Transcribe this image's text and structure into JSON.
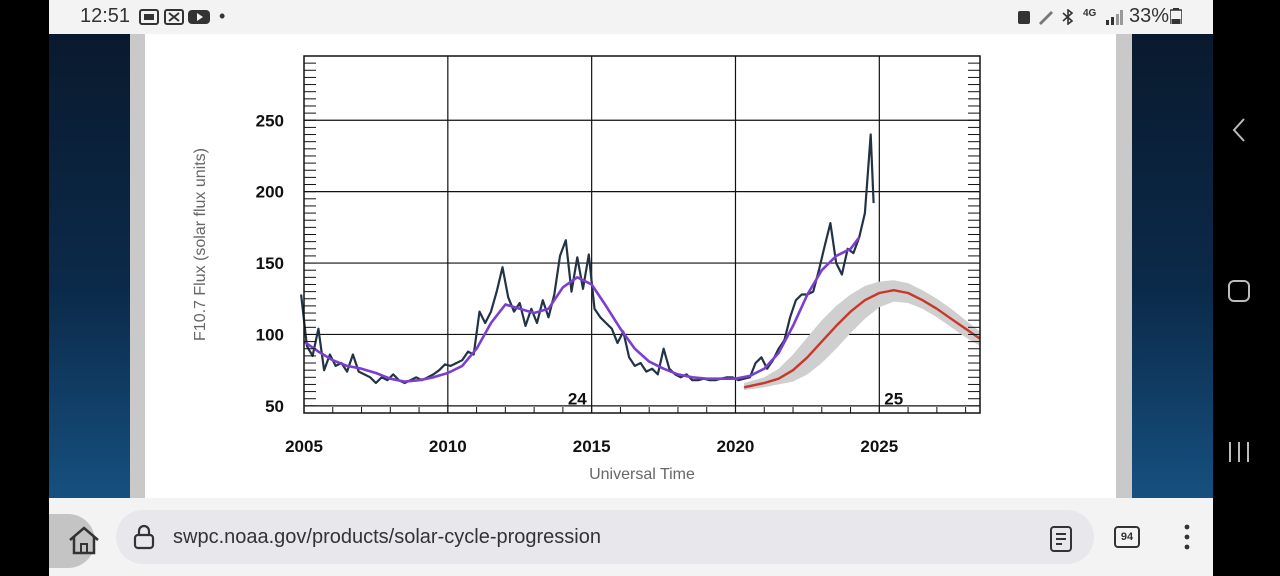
{
  "status_bar": {
    "time": "12:51",
    "dot": "•",
    "battery_text": "33%",
    "network_text": "4G"
  },
  "browser": {
    "url": "swpc.noaa.gov/products/solar-cycle-progression",
    "tab_count": "94"
  },
  "colors": {
    "observed": "#223344",
    "smoothed": "#7a3fd0",
    "predicted": "#c9372c",
    "prediction_band": "#cfcfcf"
  },
  "chart_data": {
    "type": "line",
    "ylabel": "F10.7 Flux (solar flux units)",
    "xlabel": "Universal Time",
    "xlim": [
      2005,
      2028.5
    ],
    "ylim": [
      45,
      295
    ],
    "x_ticks": [
      "2005",
      "2010",
      "2015",
      "2020",
      "2025"
    ],
    "y_ticks": [
      "50",
      "100",
      "150",
      "200",
      "250"
    ],
    "annotations": [
      {
        "text": "24",
        "x": 2014.5,
        "y": 55
      },
      {
        "text": "25",
        "x": 2025.5,
        "y": 55
      }
    ],
    "series": [
      {
        "key": "observed",
        "x": [
          2004.9,
          2005.1,
          2005.3,
          2005.5,
          2005.7,
          2005.9,
          2006.1,
          2006.3,
          2006.5,
          2006.7,
          2006.9,
          2007.1,
          2007.3,
          2007.5,
          2007.7,
          2007.9,
          2008.1,
          2008.3,
          2008.5,
          2008.7,
          2008.9,
          2009.1,
          2009.3,
          2009.5,
          2009.7,
          2009.9,
          2010.1,
          2010.3,
          2010.5,
          2010.7,
          2010.9,
          2011.1,
          2011.3,
          2011.5,
          2011.7,
          2011.9,
          2012.1,
          2012.3,
          2012.5,
          2012.7,
          2012.9,
          2013.1,
          2013.3,
          2013.5,
          2013.7,
          2013.9,
          2014.1,
          2014.3,
          2014.5,
          2014.7,
          2014.9,
          2015.1,
          2015.3,
          2015.5,
          2015.7,
          2015.9,
          2016.1,
          2016.3,
          2016.5,
          2016.7,
          2016.9,
          2017.1,
          2017.3,
          2017.5,
          2017.7,
          2017.9,
          2018.1,
          2018.3,
          2018.5,
          2018.7,
          2018.9,
          2019.1,
          2019.3,
          2019.5,
          2019.7,
          2019.9,
          2020.1,
          2020.3,
          2020.5,
          2020.7,
          2020.9,
          2021.1,
          2021.3,
          2021.5,
          2021.7,
          2021.9,
          2022.1,
          2022.3,
          2022.5,
          2022.7,
          2022.9,
          2023.1,
          2023.3,
          2023.5,
          2023.7,
          2023.9,
          2024.1,
          2024.3,
          2024.5,
          2024.7,
          2024.8
        ],
        "y": [
          128,
          92,
          85,
          104,
          75,
          86,
          78,
          80,
          74,
          86,
          74,
          72,
          70,
          66,
          70,
          68,
          72,
          68,
          66,
          68,
          70,
          68,
          70,
          72,
          75,
          79,
          78,
          80,
          82,
          88,
          86,
          116,
          108,
          116,
          130,
          147,
          126,
          116,
          122,
          106,
          118,
          108,
          124,
          112,
          128,
          155,
          166,
          130,
          154,
          132,
          156,
          118,
          112,
          108,
          104,
          94,
          102,
          84,
          78,
          80,
          74,
          76,
          72,
          90,
          76,
          72,
          70,
          72,
          68,
          68,
          69,
          68,
          68,
          69,
          70,
          70,
          68,
          69,
          70,
          80,
          84,
          76,
          82,
          90,
          96,
          112,
          124,
          128,
          128,
          130,
          145,
          162,
          178,
          150,
          142,
          160,
          157,
          168,
          185,
          240,
          192
        ]
      },
      {
        "key": "smoothed",
        "x": [
          2005.0,
          2005.5,
          2006.0,
          2006.5,
          2007.0,
          2007.5,
          2008.0,
          2008.5,
          2009.0,
          2009.5,
          2010.0,
          2010.5,
          2011.0,
          2011.5,
          2012.0,
          2012.5,
          2013.0,
          2013.5,
          2014.0,
          2014.5,
          2015.0,
          2015.5,
          2016.0,
          2016.5,
          2017.0,
          2017.5,
          2018.0,
          2018.5,
          2019.0,
          2019.5,
          2020.0,
          2020.5,
          2021.0,
          2021.5,
          2022.0,
          2022.5,
          2023.0,
          2023.5,
          2024.0,
          2024.3
        ],
        "y": [
          95,
          88,
          82,
          78,
          76,
          73,
          69,
          67,
          68,
          70,
          73,
          78,
          90,
          108,
          121,
          118,
          115,
          118,
          133,
          140,
          135,
          120,
          104,
          90,
          81,
          76,
          72,
          70,
          69,
          69,
          69,
          71,
          76,
          87,
          106,
          128,
          145,
          155,
          160,
          168
        ]
      },
      {
        "key": "predicted",
        "x": [
          2020.3,
          2021.0,
          2021.5,
          2022.0,
          2022.5,
          2023.0,
          2023.5,
          2024.0,
          2024.5,
          2025.0,
          2025.5,
          2026.0,
          2026.5,
          2027.0,
          2027.5,
          2028.0,
          2028.5
        ],
        "y": [
          63,
          66,
          69,
          75,
          84,
          95,
          106,
          116,
          124,
          129,
          131,
          129,
          124,
          118,
          111,
          104,
          97
        ]
      }
    ],
    "prediction_band": {
      "x": [
        2020.3,
        2021.0,
        2021.5,
        2022.0,
        2022.5,
        2023.0,
        2023.5,
        2024.0,
        2024.5,
        2025.0,
        2025.5,
        2026.0,
        2026.5,
        2027.0,
        2027.5,
        2028.0,
        2028.5
      ],
      "upper": [
        66,
        70,
        76,
        86,
        98,
        110,
        120,
        128,
        134,
        137,
        138,
        136,
        131,
        125,
        118,
        110,
        102
      ],
      "lower": [
        61,
        63,
        65,
        67,
        72,
        80,
        90,
        101,
        111,
        119,
        123,
        122,
        118,
        112,
        105,
        98,
        92
      ]
    }
  }
}
